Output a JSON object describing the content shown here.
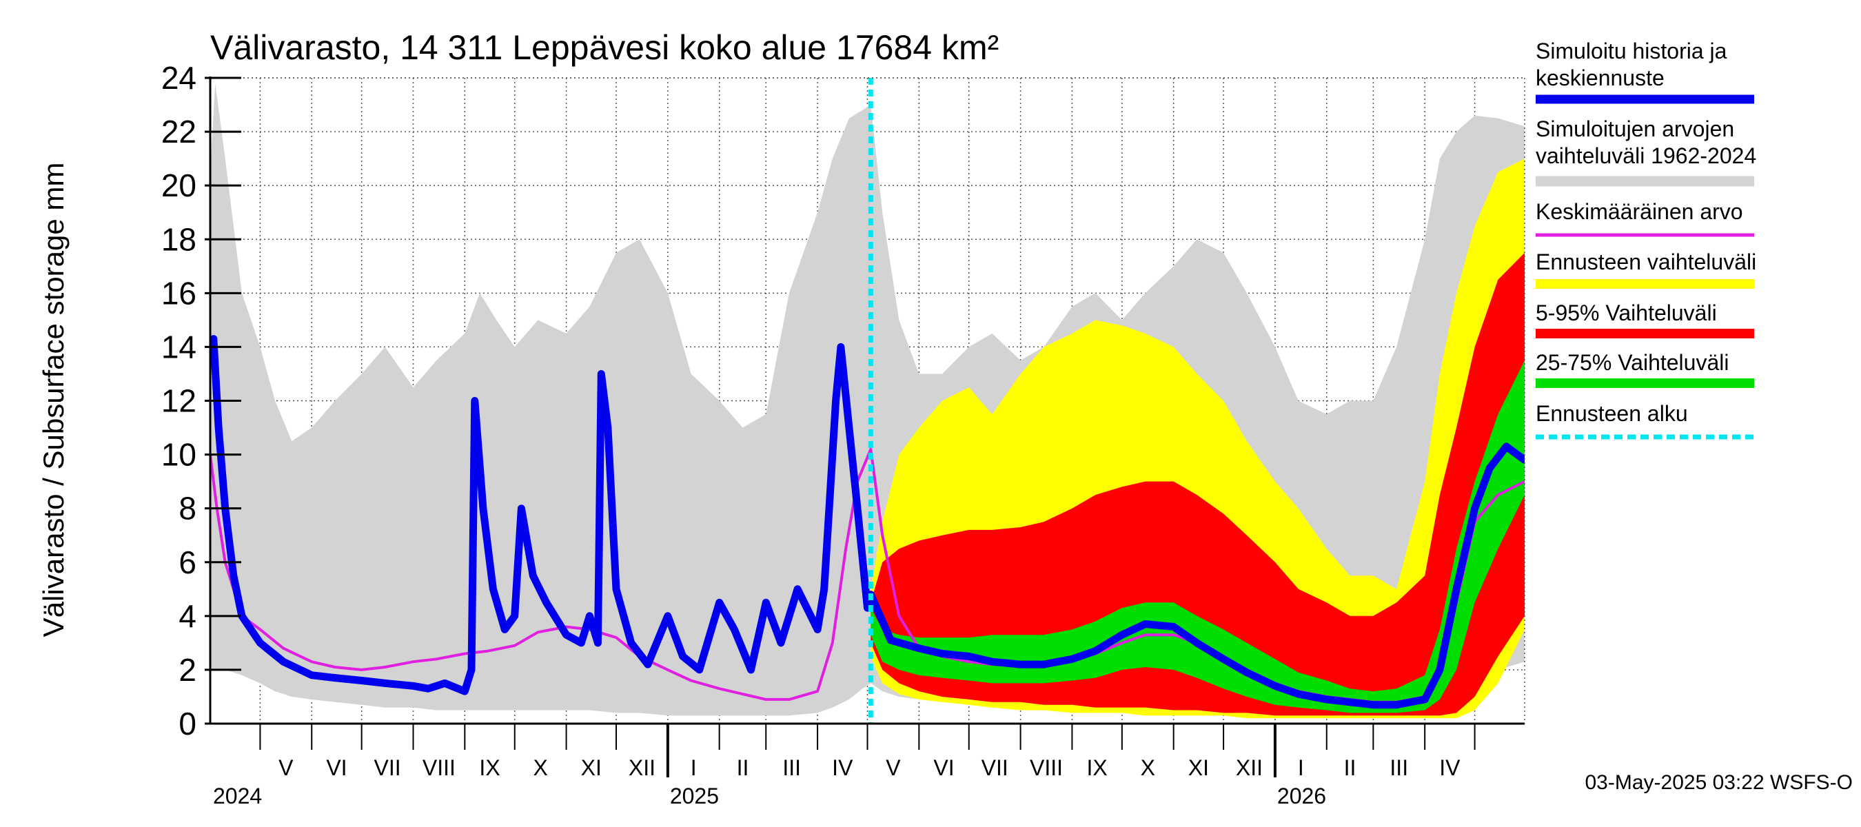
{
  "chart_data": {
    "type": "area",
    "title": "Välivarasto, 14 311 Leppävesi koko alue 17684 km²",
    "ylabel": "Välivarasto / Subsurface storage  mm",
    "ylim": [
      0,
      24
    ],
    "yticks": [
      0,
      2,
      4,
      6,
      8,
      10,
      12,
      14,
      16,
      18,
      20,
      22,
      24
    ],
    "x_range": [
      "2024-04-01",
      "2026-05-31"
    ],
    "forecast_start": "2025-05-03",
    "grid": true,
    "legend_position": "right",
    "months": [
      {
        "label": "V",
        "start": "2024-05-01"
      },
      {
        "label": "VI",
        "start": "2024-06-01"
      },
      {
        "label": "VII",
        "start": "2024-07-01"
      },
      {
        "label": "VIII",
        "start": "2024-08-01"
      },
      {
        "label": "IX",
        "start": "2024-09-01"
      },
      {
        "label": "X",
        "start": "2024-10-01"
      },
      {
        "label": "XI",
        "start": "2024-11-01"
      },
      {
        "label": "XII",
        "start": "2024-12-01"
      },
      {
        "label": "I",
        "start": "2025-01-01"
      },
      {
        "label": "II",
        "start": "2025-02-01"
      },
      {
        "label": "III",
        "start": "2025-03-01"
      },
      {
        "label": "IV",
        "start": "2025-04-01"
      },
      {
        "label": "V",
        "start": "2025-05-01"
      },
      {
        "label": "VI",
        "start": "2025-06-01"
      },
      {
        "label": "VII",
        "start": "2025-07-01"
      },
      {
        "label": "VIII",
        "start": "2025-08-01"
      },
      {
        "label": "IX",
        "start": "2025-09-01"
      },
      {
        "label": "X",
        "start": "2025-10-01"
      },
      {
        "label": "XI",
        "start": "2025-11-01"
      },
      {
        "label": "XII",
        "start": "2025-12-01"
      },
      {
        "label": "I",
        "start": "2026-01-01"
      },
      {
        "label": "II",
        "start": "2026-02-01"
      },
      {
        "label": "III",
        "start": "2026-03-01"
      },
      {
        "label": "IV",
        "start": "2026-04-01"
      },
      {
        "label": "",
        "start": "2026-05-01"
      },
      {
        "label": "",
        "end": "2026-05-31"
      }
    ],
    "years": [
      {
        "label": "2024",
        "start": "2024-05-01"
      },
      {
        "label": "2025",
        "start": "2025-01-01"
      },
      {
        "label": "2026",
        "start": "2026-01-01"
      }
    ],
    "legend": [
      {
        "label": "Simuloitu historia ja keskiennuste",
        "color": "#0000ee"
      },
      {
        "label": "Simuloitujen arvojen vaihteluväli 1962-2024",
        "color": "#d3d3d3"
      },
      {
        "label": "Keskimääräinen arvo",
        "color": "#e020e0"
      },
      {
        "label": "Ennusteen vaihteluväli",
        "color": "#ffff00"
      },
      {
        "label": "5-95% Vaihteluväli",
        "color": "#ff0000"
      },
      {
        "label": "25-75% Vaihteluväli",
        "color": "#00dd00"
      },
      {
        "label": "Ennusteen alku",
        "color": "#00e5ee"
      }
    ],
    "series": [
      {
        "name": "Simuloitujen arvojen vaihteluväli 1962-2024",
        "kind": "band",
        "color": "#d3d3d3",
        "x": [
          "2024-04-01",
          "2024-04-04",
          "2024-04-10",
          "2024-04-20",
          "2024-05-01",
          "2024-05-10",
          "2024-05-20",
          "2024-06-01",
          "2024-06-15",
          "2024-07-01",
          "2024-07-15",
          "2024-08-01",
          "2024-08-15",
          "2024-09-01",
          "2024-09-10",
          "2024-09-20",
          "2024-10-01",
          "2024-10-15",
          "2024-11-01",
          "2024-11-15",
          "2024-12-01",
          "2024-12-15",
          "2025-01-01",
          "2025-01-15",
          "2025-02-01",
          "2025-02-15",
          "2025-03-01",
          "2025-03-15",
          "2025-04-01",
          "2025-04-10",
          "2025-04-20",
          "2025-04-28",
          "2025-05-03",
          "2025-05-10",
          "2025-05-20",
          "2025-06-01",
          "2025-06-15",
          "2025-07-01",
          "2025-07-15",
          "2025-08-01",
          "2025-08-15",
          "2025-09-01",
          "2025-09-15",
          "2025-10-01",
          "2025-10-15",
          "2025-11-01",
          "2025-11-15",
          "2025-12-01",
          "2025-12-15",
          "2026-01-01",
          "2026-01-15",
          "2026-02-01",
          "2026-02-15",
          "2026-03-01",
          "2026-03-15",
          "2026-04-01",
          "2026-04-10",
          "2026-04-20",
          "2026-05-01",
          "2026-05-15",
          "2026-05-31"
        ],
        "low": [
          2.0,
          2.0,
          2.0,
          1.8,
          1.5,
          1.2,
          1.0,
          0.9,
          0.8,
          0.7,
          0.6,
          0.6,
          0.5,
          0.5,
          0.5,
          0.5,
          0.5,
          0.5,
          0.5,
          0.5,
          0.4,
          0.4,
          0.3,
          0.3,
          0.3,
          0.3,
          0.3,
          0.3,
          0.4,
          0.6,
          0.9,
          1.3,
          1.5,
          1.2,
          1.0,
          0.9,
          0.8,
          0.7,
          0.6,
          0.6,
          0.5,
          0.5,
          0.5,
          0.5,
          0.5,
          0.5,
          0.5,
          0.4,
          0.4,
          0.3,
          0.3,
          0.3,
          0.3,
          0.3,
          0.3,
          0.4,
          0.6,
          0.9,
          1.5,
          2.0,
          2.3
        ],
        "high": [
          20.5,
          23.8,
          21.0,
          16.0,
          14.0,
          12.0,
          10.5,
          11.0,
          12.0,
          13.0,
          14.0,
          12.5,
          13.5,
          14.5,
          16.0,
          15.0,
          14.0,
          15.0,
          14.5,
          15.5,
          17.5,
          18.0,
          16.0,
          13.0,
          12.0,
          11.0,
          11.5,
          16.0,
          19.0,
          21.0,
          22.5,
          22.8,
          23.0,
          19.0,
          15.0,
          13.0,
          13.0,
          14.0,
          14.5,
          13.5,
          14.0,
          15.5,
          16.0,
          15.0,
          16.0,
          17.0,
          18.0,
          17.5,
          16.0,
          14.0,
          12.0,
          11.5,
          12.0,
          12.0,
          14.0,
          18.0,
          21.0,
          22.0,
          22.6,
          22.5,
          22.2
        ]
      },
      {
        "name": "Ennusteen vaihteluväli",
        "kind": "band",
        "color": "#ffff00",
        "x": [
          "2025-05-03",
          "2025-05-10",
          "2025-05-20",
          "2025-06-01",
          "2025-06-15",
          "2025-07-01",
          "2025-07-15",
          "2025-08-01",
          "2025-08-15",
          "2025-09-01",
          "2025-09-15",
          "2025-10-01",
          "2025-10-15",
          "2025-11-01",
          "2025-11-15",
          "2025-12-01",
          "2025-12-15",
          "2026-01-01",
          "2026-01-15",
          "2026-02-01",
          "2026-02-15",
          "2026-03-01",
          "2026-03-15",
          "2026-04-01",
          "2026-04-10",
          "2026-04-20",
          "2026-05-01",
          "2026-05-15",
          "2026-05-31"
        ],
        "low": [
          2.5,
          1.5,
          1.1,
          0.9,
          0.8,
          0.7,
          0.6,
          0.5,
          0.5,
          0.4,
          0.4,
          0.4,
          0.3,
          0.3,
          0.3,
          0.3,
          0.2,
          0.2,
          0.2,
          0.2,
          0.2,
          0.2,
          0.2,
          0.2,
          0.2,
          0.2,
          0.5,
          1.5,
          3.5
        ],
        "high": [
          5.0,
          7.5,
          10.0,
          11.0,
          12.0,
          12.5,
          11.5,
          13.0,
          14.0,
          14.5,
          15.0,
          14.8,
          14.5,
          14.0,
          13.0,
          12.0,
          10.5,
          9.0,
          8.0,
          6.5,
          5.5,
          5.5,
          5.0,
          9.0,
          13.0,
          16.0,
          18.5,
          20.5,
          21.0
        ]
      },
      {
        "name": "5-95% Vaihteluväli",
        "kind": "band",
        "color": "#ff0000",
        "x": [
          "2025-05-03",
          "2025-05-10",
          "2025-05-20",
          "2025-06-01",
          "2025-06-15",
          "2025-07-01",
          "2025-07-15",
          "2025-08-01",
          "2025-08-15",
          "2025-09-01",
          "2025-09-15",
          "2025-10-01",
          "2025-10-15",
          "2025-11-01",
          "2025-11-15",
          "2025-12-01",
          "2025-12-15",
          "2026-01-01",
          "2026-01-15",
          "2026-02-01",
          "2026-02-15",
          "2026-03-01",
          "2026-03-15",
          "2026-04-01",
          "2026-04-10",
          "2026-04-20",
          "2026-05-01",
          "2026-05-15",
          "2026-05-31"
        ],
        "low": [
          3.0,
          2.0,
          1.5,
          1.2,
          1.0,
          0.9,
          0.8,
          0.8,
          0.7,
          0.7,
          0.6,
          0.6,
          0.6,
          0.5,
          0.5,
          0.4,
          0.4,
          0.3,
          0.3,
          0.3,
          0.3,
          0.3,
          0.3,
          0.3,
          0.3,
          0.4,
          1.0,
          2.5,
          4.0
        ],
        "high": [
          4.5,
          6.0,
          6.5,
          6.8,
          7.0,
          7.2,
          7.2,
          7.3,
          7.5,
          8.0,
          8.5,
          8.8,
          9.0,
          9.0,
          8.5,
          7.8,
          7.0,
          6.0,
          5.0,
          4.5,
          4.0,
          4.0,
          4.5,
          5.5,
          8.5,
          11.0,
          14.0,
          16.5,
          17.5
        ]
      },
      {
        "name": "25-75% Vaihteluväli",
        "kind": "band",
        "color": "#00dd00",
        "x": [
          "2025-05-03",
          "2025-05-10",
          "2025-05-20",
          "2025-06-01",
          "2025-06-15",
          "2025-07-01",
          "2025-07-15",
          "2025-08-01",
          "2025-08-15",
          "2025-09-01",
          "2025-09-15",
          "2025-10-01",
          "2025-10-15",
          "2025-11-01",
          "2025-11-15",
          "2025-12-01",
          "2025-12-15",
          "2026-01-01",
          "2026-01-15",
          "2026-02-01",
          "2026-02-15",
          "2026-03-01",
          "2026-03-15",
          "2026-04-01",
          "2026-04-10",
          "2026-04-20",
          "2026-05-01",
          "2026-05-15",
          "2026-05-31"
        ],
        "low": [
          3.3,
          2.3,
          2.0,
          1.8,
          1.7,
          1.6,
          1.5,
          1.5,
          1.5,
          1.6,
          1.7,
          2.0,
          2.1,
          2.0,
          1.7,
          1.3,
          1.0,
          0.7,
          0.6,
          0.5,
          0.4,
          0.4,
          0.4,
          0.5,
          0.9,
          2.0,
          4.5,
          6.5,
          8.5
        ],
        "high": [
          4.3,
          3.5,
          3.3,
          3.2,
          3.2,
          3.2,
          3.3,
          3.3,
          3.3,
          3.5,
          3.8,
          4.3,
          4.5,
          4.5,
          4.0,
          3.5,
          3.0,
          2.4,
          1.9,
          1.6,
          1.3,
          1.2,
          1.3,
          1.8,
          3.5,
          6.5,
          9.0,
          11.5,
          13.5
        ]
      },
      {
        "name": "Keskimääräinen arvo",
        "kind": "line",
        "color": "#e020e0",
        "x": [
          "2024-04-01",
          "2024-04-05",
          "2024-04-10",
          "2024-04-20",
          "2024-05-01",
          "2024-05-15",
          "2024-06-01",
          "2024-06-15",
          "2024-07-01",
          "2024-07-15",
          "2024-08-01",
          "2024-08-15",
          "2024-09-01",
          "2024-09-15",
          "2024-10-01",
          "2024-10-15",
          "2024-11-01",
          "2024-11-15",
          "2024-12-01",
          "2024-12-15",
          "2025-01-01",
          "2025-01-15",
          "2025-02-01",
          "2025-02-15",
          "2025-03-01",
          "2025-03-15",
          "2025-04-01",
          "2025-04-10",
          "2025-04-18",
          "2025-04-25",
          "2025-05-03",
          "2025-05-10",
          "2025-05-20",
          "2025-06-01",
          "2025-06-15",
          "2025-07-01",
          "2025-07-15",
          "2025-08-01",
          "2025-08-15",
          "2025-09-01",
          "2025-09-15",
          "2025-10-01",
          "2025-10-15",
          "2025-11-01",
          "2025-11-15",
          "2025-12-01",
          "2025-12-15",
          "2026-01-01",
          "2026-01-15",
          "2026-02-01",
          "2026-02-15",
          "2026-03-01",
          "2026-03-15",
          "2026-04-01",
          "2026-04-10",
          "2026-04-20",
          "2026-05-01",
          "2026-05-15",
          "2026-05-31"
        ],
        "y": [
          10.0,
          8.0,
          6.0,
          4.0,
          3.5,
          2.8,
          2.3,
          2.1,
          2.0,
          2.1,
          2.3,
          2.4,
          2.6,
          2.7,
          2.9,
          3.4,
          3.6,
          3.5,
          3.2,
          2.5,
          2.0,
          1.6,
          1.3,
          1.1,
          0.9,
          0.9,
          1.2,
          3.0,
          6.5,
          9.0,
          10.2,
          7.0,
          4.0,
          2.8,
          2.5,
          2.3,
          2.2,
          2.2,
          2.2,
          2.4,
          2.6,
          3.0,
          3.3,
          3.3,
          3.0,
          2.5,
          2.0,
          1.5,
          1.2,
          1.0,
          0.9,
          0.8,
          0.8,
          1.0,
          2.0,
          4.5,
          7.5,
          8.5,
          9.0
        ]
      },
      {
        "name": "Simuloitu historia ja keskiennuste",
        "kind": "line",
        "color": "#0000ee",
        "x": [
          "2024-04-01",
          "2024-04-03",
          "2024-04-06",
          "2024-04-10",
          "2024-04-15",
          "2024-04-20",
          "2024-05-01",
          "2024-05-15",
          "2024-06-01",
          "2024-06-15",
          "2024-07-01",
          "2024-07-15",
          "2024-08-01",
          "2024-08-10",
          "2024-08-20",
          "2024-09-01",
          "2024-09-05",
          "2024-09-07",
          "2024-09-12",
          "2024-09-18",
          "2024-09-25",
          "2024-10-01",
          "2024-10-05",
          "2024-10-12",
          "2024-10-20",
          "2024-11-01",
          "2024-11-10",
          "2024-11-15",
          "2024-11-20",
          "2024-11-22",
          "2024-11-26",
          "2024-12-01",
          "2024-12-10",
          "2024-12-20",
          "2025-01-01",
          "2025-01-10",
          "2025-01-20",
          "2025-02-01",
          "2025-02-10",
          "2025-02-20",
          "2025-03-01",
          "2025-03-10",
          "2025-03-20",
          "2025-04-01",
          "2025-04-05",
          "2025-04-08",
          "2025-04-12",
          "2025-04-15",
          "2025-04-20",
          "2025-04-25",
          "2025-05-01",
          "2025-05-03",
          "2025-05-15",
          "2025-06-01",
          "2025-06-15",
          "2025-07-01",
          "2025-07-15",
          "2025-08-01",
          "2025-08-15",
          "2025-09-01",
          "2025-09-15",
          "2025-10-01",
          "2025-10-15",
          "2025-11-01",
          "2025-11-15",
          "2025-12-01",
          "2025-12-15",
          "2026-01-01",
          "2026-01-15",
          "2026-02-01",
          "2026-02-15",
          "2026-03-01",
          "2026-03-15",
          "2026-04-01",
          "2026-04-10",
          "2026-04-20",
          "2026-05-01",
          "2026-05-10",
          "2026-05-20",
          "2026-05-31"
        ],
        "y": [
          14.0,
          14.3,
          11.0,
          8.0,
          5.5,
          4.0,
          3.0,
          2.3,
          1.8,
          1.7,
          1.6,
          1.5,
          1.4,
          1.3,
          1.5,
          1.2,
          2.0,
          12.0,
          8.0,
          5.0,
          3.5,
          4.0,
          8.0,
          5.5,
          4.5,
          3.3,
          3.0,
          4.0,
          3.0,
          13.0,
          11.0,
          5.0,
          3.0,
          2.2,
          4.0,
          2.5,
          2.0,
          4.5,
          3.5,
          2.0,
          4.5,
          3.0,
          5.0,
          3.5,
          5.0,
          8.0,
          12.0,
          14.0,
          11.0,
          8.0,
          4.3,
          4.8,
          3.1,
          2.8,
          2.6,
          2.5,
          2.3,
          2.2,
          2.2,
          2.4,
          2.7,
          3.3,
          3.7,
          3.6,
          3.0,
          2.4,
          1.9,
          1.4,
          1.1,
          0.9,
          0.8,
          0.7,
          0.7,
          0.9,
          2.0,
          5.0,
          8.0,
          9.5,
          10.3,
          9.8
        ]
      }
    ]
  },
  "footer": {
    "timestamp": "03-May-2025 03:22 WSFS-O"
  }
}
